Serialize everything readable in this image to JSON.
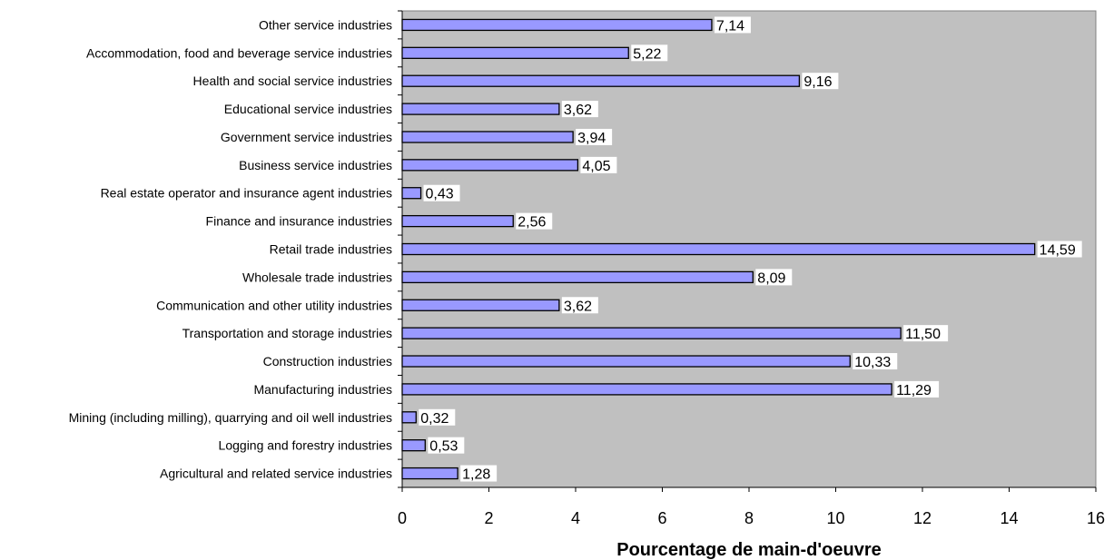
{
  "chart_data": {
    "type": "bar",
    "orientation": "horizontal",
    "categories": [
      "Other service industries",
      "Accommodation, food and beverage service industries",
      "Health and social service industries",
      "Educational service industries",
      "Government service industries",
      "Business service industries",
      "Real estate operator and insurance agent industries",
      "Finance and insurance industries",
      "Retail trade industries",
      "Wholesale trade industries",
      "Communication and other utility industries",
      "Transportation and storage industries",
      "Construction industries",
      "Manufacturing industries",
      "Mining (including milling), quarrying and oil well industries",
      "Logging and forestry industries",
      "Agricultural and related service industries"
    ],
    "values": [
      7.14,
      5.22,
      9.16,
      3.62,
      3.94,
      4.05,
      0.43,
      2.56,
      14.59,
      8.09,
      3.62,
      11.5,
      10.33,
      11.29,
      0.32,
      0.53,
      1.28
    ],
    "value_labels": [
      "7,14",
      "5,22",
      "9,16",
      "3,62",
      "3,94",
      "4,05",
      "0,43",
      "2,56",
      "14,59",
      "8,09",
      "3,62",
      "11,50",
      "10,33",
      "11,29",
      "0,32",
      "0,53",
      "1,28"
    ],
    "xlabel": "Pourcentage de main-d'oeuvre",
    "ylabel": "",
    "xlim": [
      0,
      16
    ],
    "x_ticks": [
      0,
      2,
      4,
      6,
      8,
      10,
      12,
      14,
      16
    ],
    "grid": false,
    "legend": "none",
    "colors": {
      "bar": "#9999ff",
      "plot_area": "#c0c0c0",
      "bar_outline": "#000000"
    }
  }
}
